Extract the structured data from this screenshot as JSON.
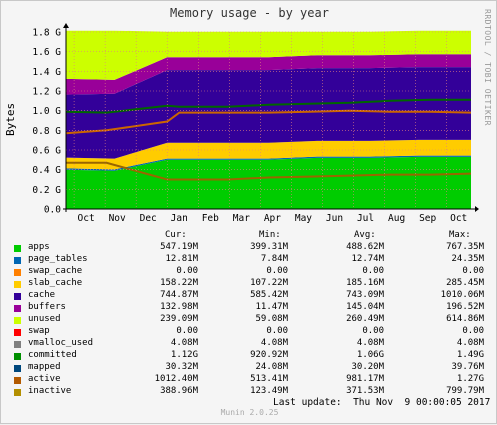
{
  "title": "Memory usage - by year",
  "side_label": "RRDTOOL / TOBI OETIKER",
  "footer_brand": "Munin 2.0.25",
  "last_update": "Last update:  Thu Nov  9 00:00:05 2017",
  "chart_data": {
    "type": "area",
    "title": "Memory usage - by year",
    "ylabel": "Bytes",
    "ylim": [
      0,
      1.8
    ],
    "yticks": [
      "0.0",
      "0.2",
      "0.4",
      "0.6",
      "0.8",
      "1.0",
      "1.2",
      "1.4",
      "1.6",
      "1.8"
    ],
    "yunit": "G",
    "x_months": [
      "Oct",
      "Nov",
      "Dec",
      "Jan",
      "Feb",
      "Mar",
      "Apr",
      "May",
      "Jun",
      "Jul",
      "Aug",
      "Sep",
      "Oct"
    ],
    "grid": true,
    "stack": [
      {
        "name": "apps",
        "color": "#00cc00",
        "values": [
          0.4,
          0.39,
          0.5,
          0.5,
          0.5,
          0.52,
          0.52,
          0.53,
          0.53
        ]
      },
      {
        "name": "page_tables",
        "color": "#0066b3",
        "values": [
          0.013,
          0.013,
          0.013,
          0.013,
          0.013,
          0.013,
          0.013,
          0.013,
          0.013
        ]
      },
      {
        "name": "slab_cache",
        "color": "#ffcc00",
        "values": [
          0.11,
          0.11,
          0.16,
          0.16,
          0.16,
          0.16,
          0.16,
          0.16,
          0.16
        ]
      },
      {
        "name": "cache",
        "color": "#330099",
        "values": [
          0.64,
          0.66,
          0.74,
          0.74,
          0.74,
          0.74,
          0.74,
          0.74,
          0.74
        ]
      },
      {
        "name": "buffers",
        "color": "#990099",
        "values": [
          0.16,
          0.14,
          0.13,
          0.13,
          0.13,
          0.13,
          0.13,
          0.13,
          0.13
        ]
      },
      {
        "name": "unused",
        "color": "#ccff00",
        "values": [
          0.49,
          0.5,
          0.26,
          0.26,
          0.26,
          0.24,
          0.24,
          0.24,
          0.24
        ]
      }
    ],
    "stack_x": [
      0,
      0.12,
      0.25,
      0.35,
      0.5,
      0.62,
      0.75,
      0.87,
      1.0
    ],
    "lines": [
      {
        "name": "committed",
        "color": "#006600",
        "values": [
          0.99,
          0.98,
          1.05,
          1.04,
          1.04,
          1.06,
          1.07,
          1.08,
          1.1,
          1.11,
          1.11
        ]
      },
      {
        "name": "active",
        "color": "#cc6600",
        "values": [
          0.77,
          0.8,
          0.89,
          0.98,
          0.98,
          0.98,
          0.99,
          1.0,
          0.99,
          0.99,
          0.98
        ]
      },
      {
        "name": "inactive",
        "color": "#996600",
        "values": [
          0.47,
          0.47,
          0.3,
          0.3,
          0.3,
          0.32,
          0.33,
          0.34,
          0.35,
          0.35,
          0.36
        ]
      }
    ],
    "lines_x": [
      0,
      0.1,
      0.25,
      0.28,
      0.4,
      0.5,
      0.6,
      0.7,
      0.8,
      0.9,
      1.0
    ]
  },
  "legend_header": {
    "cur": "Cur:",
    "min": "Min:",
    "avg": "Avg:",
    "max": "Max:"
  },
  "legend": [
    {
      "name": "apps",
      "color": "#00cc00",
      "cur": "547.19M",
      "min": "399.31M",
      "avg": "488.62M",
      "max": "767.35M"
    },
    {
      "name": "page_tables",
      "color": "#0066b3",
      "cur": "12.81M",
      "min": "7.84M",
      "avg": "12.74M",
      "max": "24.35M"
    },
    {
      "name": "swap_cache",
      "color": "#ff8000",
      "cur": "0.00",
      "min": "0.00",
      "avg": "0.00",
      "max": "0.00"
    },
    {
      "name": "slab_cache",
      "color": "#ffcc00",
      "cur": "158.22M",
      "min": "107.22M",
      "avg": "185.16M",
      "max": "285.45M"
    },
    {
      "name": "cache",
      "color": "#330099",
      "cur": "744.87M",
      "min": "585.42M",
      "avg": "743.09M",
      "max": "1010.06M"
    },
    {
      "name": "buffers",
      "color": "#990099",
      "cur": "132.98M",
      "min": "11.47M",
      "avg": "145.04M",
      "max": "196.52M"
    },
    {
      "name": "unused",
      "color": "#ccff00",
      "cur": "239.09M",
      "min": "59.08M",
      "avg": "260.49M",
      "max": "614.86M"
    },
    {
      "name": "swap",
      "color": "#ff0000",
      "cur": "0.00",
      "min": "0.00",
      "avg": "0.00",
      "max": "0.00"
    },
    {
      "name": "vmalloc_used",
      "color": "#808080",
      "cur": "4.08M",
      "min": "4.08M",
      "avg": "4.08M",
      "max": "4.08M"
    },
    {
      "name": "committed",
      "color": "#008f00",
      "cur": "1.12G",
      "min": "920.92M",
      "avg": "1.06G",
      "max": "1.49G"
    },
    {
      "name": "mapped",
      "color": "#00487d",
      "cur": "30.32M",
      "min": "24.08M",
      "avg": "30.20M",
      "max": "39.76M"
    },
    {
      "name": "active",
      "color": "#b35a00",
      "cur": "1012.40M",
      "min": "513.41M",
      "avg": "981.17M",
      "max": "1.27G"
    },
    {
      "name": "inactive",
      "color": "#b38f00",
      "cur": "388.96M",
      "min": "123.49M",
      "avg": "371.53M",
      "max": "799.79M"
    }
  ]
}
